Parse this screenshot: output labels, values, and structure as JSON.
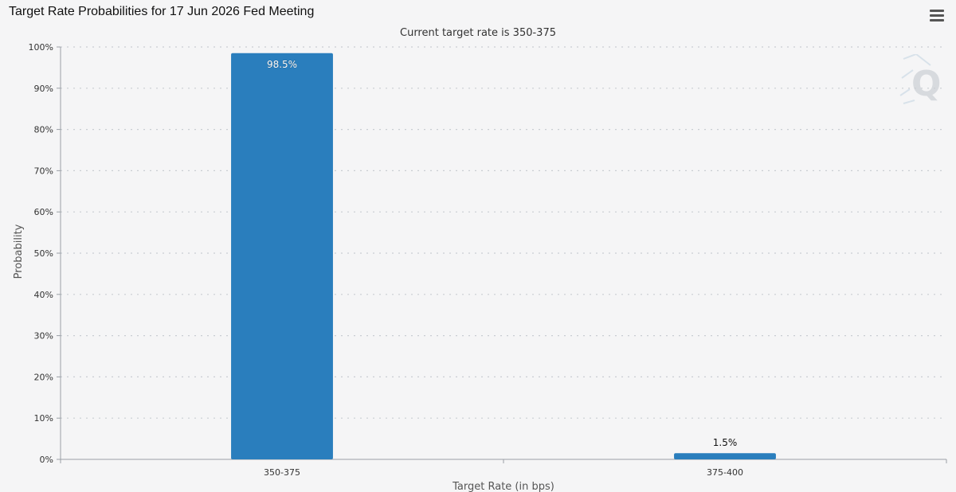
{
  "header": {
    "title": "Target Rate Probabilities for 17 Jun 2026 Fed Meeting",
    "menu_icon": "hamburger-menu-icon"
  },
  "watermark_icon": "q-logo-icon",
  "chart_data": {
    "type": "bar",
    "title": "Target Rate Probabilities for 17 Jun 2026 Fed Meeting",
    "subtitle": "Current target rate is 350-375",
    "xlabel": "Target Rate (in bps)",
    "ylabel": "Probability",
    "categories": [
      "350-375",
      "375-400"
    ],
    "values": [
      98.5,
      1.5
    ],
    "data_labels": [
      "98.5%",
      "1.5%"
    ],
    "ylim": [
      0,
      100
    ],
    "y_ticks": [
      "0%",
      "10%",
      "20%",
      "30%",
      "40%",
      "50%",
      "60%",
      "70%",
      "80%",
      "90%",
      "100%"
    ],
    "grid": true,
    "legend": "none",
    "bar_color": "#2a7ebd"
  }
}
